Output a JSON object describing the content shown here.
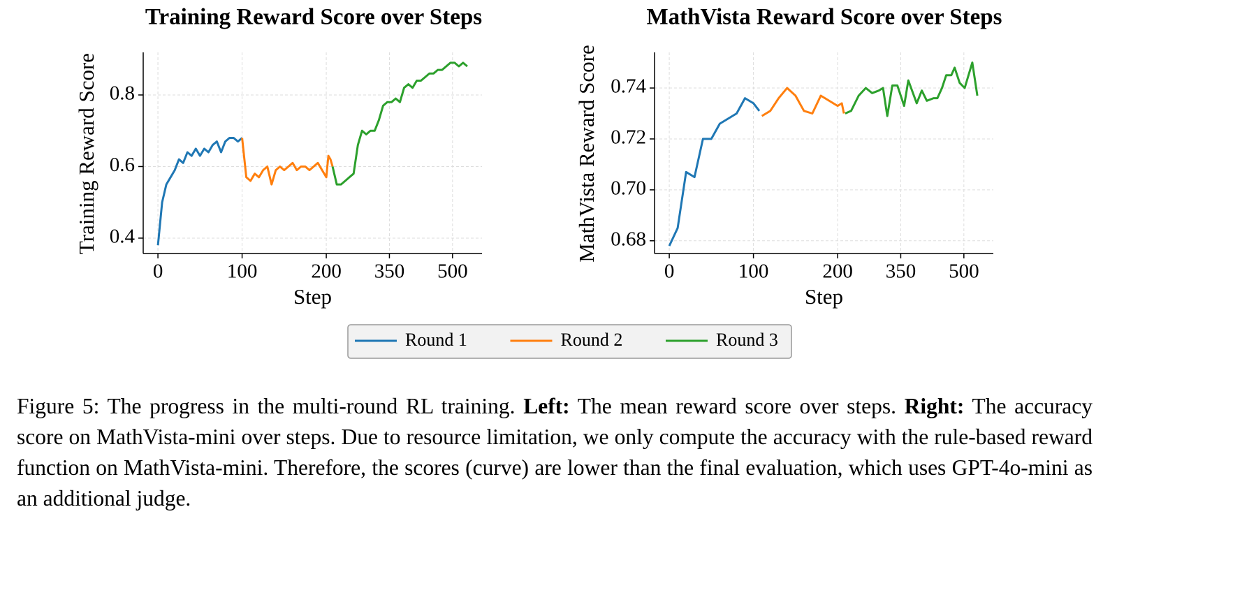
{
  "chart_data": [
    {
      "type": "line",
      "title": "Training Reward Score over Steps",
      "xlabel": "Step",
      "ylabel": "Training Reward Score",
      "xlim": [
        -17.5,
        570
      ],
      "xticks": [
        0,
        100,
        200,
        350,
        500
      ],
      "ylim": [
        0.357,
        0.919
      ],
      "yticks": [
        0.4,
        0.6,
        0.8
      ],
      "x_compress": {
        "after": 200,
        "factor": 0.5
      },
      "grid": true,
      "series": [
        {
          "name": "Round 1",
          "color": "#1f77b4",
          "x": [
            0,
            5,
            10,
            15,
            20,
            25,
            30,
            35,
            40,
            45,
            50,
            55,
            60,
            65,
            70,
            75,
            80,
            85,
            90,
            95,
            100
          ],
          "values": [
            0.38,
            0.5,
            0.55,
            0.57,
            0.59,
            0.62,
            0.61,
            0.64,
            0.63,
            0.65,
            0.63,
            0.65,
            0.64,
            0.66,
            0.67,
            0.64,
            0.67,
            0.68,
            0.68,
            0.67,
            0.68
          ]
        },
        {
          "name": "Round 2",
          "color": "#ff7f0e",
          "x": [
            100,
            105,
            110,
            115,
            120,
            125,
            130,
            135,
            140,
            145,
            150,
            155,
            160,
            165,
            170,
            175,
            180,
            185,
            190,
            195,
            200,
            205,
            210,
            215
          ],
          "values": [
            0.68,
            0.57,
            0.56,
            0.58,
            0.57,
            0.59,
            0.6,
            0.55,
            0.59,
            0.6,
            0.59,
            0.6,
            0.61,
            0.59,
            0.6,
            0.6,
            0.59,
            0.6,
            0.61,
            0.59,
            0.57,
            0.63,
            0.62,
            0.6
          ]
        },
        {
          "name": "Round 3",
          "color": "#2ca02c",
          "x": [
            215,
            225,
            235,
            245,
            255,
            265,
            275,
            285,
            295,
            305,
            315,
            325,
            335,
            345,
            355,
            365,
            375,
            385,
            395,
            405,
            415,
            425,
            435,
            445,
            455,
            465,
            475,
            485,
            495,
            505,
            515,
            525,
            535
          ],
          "values": [
            0.6,
            0.55,
            0.55,
            0.56,
            0.57,
            0.58,
            0.66,
            0.7,
            0.69,
            0.7,
            0.7,
            0.73,
            0.77,
            0.78,
            0.78,
            0.79,
            0.78,
            0.82,
            0.83,
            0.82,
            0.84,
            0.84,
            0.85,
            0.86,
            0.86,
            0.87,
            0.87,
            0.88,
            0.89,
            0.89,
            0.88,
            0.89,
            0.88
          ]
        }
      ]
    },
    {
      "type": "line",
      "title": "MathVista Reward Score over Steps",
      "xlabel": "Step",
      "ylabel": "MathVista Reward Score",
      "xlim": [
        -17.5,
        570
      ],
      "xticks": [
        0,
        100,
        200,
        350,
        500
      ],
      "ylim": [
        0.675,
        0.754
      ],
      "yticks": [
        0.68,
        {
          "value": 0.7,
          "label": "0.70"
        },
        0.72,
        0.74
      ],
      "x_compress": {
        "after": 200,
        "factor": 0.5
      },
      "grid": true,
      "series": [
        {
          "color": "#1f77b4",
          "x": [
            0,
            10,
            20,
            30,
            40,
            50,
            60,
            80,
            90,
            100,
            107
          ],
          "values": [
            0.678,
            0.685,
            0.707,
            0.705,
            0.72,
            0.72,
            0.726,
            0.73,
            0.736,
            0.734,
            0.731
          ]
        },
        {
          "color": "#ff7f0e",
          "x": [
            110,
            120,
            130,
            140,
            150,
            160,
            170,
            180,
            200,
            210,
            215
          ],
          "values": [
            0.729,
            0.731,
            0.736,
            0.74,
            0.737,
            0.731,
            0.73,
            0.737,
            0.733,
            0.734,
            0.73
          ]
        },
        {
          "color": "#2ca02c",
          "x": [
            218,
            232,
            250,
            267,
            282,
            298,
            308,
            318,
            330,
            342,
            358,
            368,
            388,
            400,
            412,
            428,
            437,
            448,
            458,
            470,
            478,
            490,
            502,
            520,
            532
          ],
          "values": [
            0.73,
            0.731,
            0.737,
            0.74,
            0.738,
            0.739,
            0.74,
            0.729,
            0.741,
            0.741,
            0.733,
            0.743,
            0.734,
            0.739,
            0.735,
            0.736,
            0.736,
            0.74,
            0.745,
            0.745,
            0.748,
            0.742,
            0.74,
            0.75,
            0.737
          ]
        }
      ]
    }
  ],
  "caption": {
    "label": "Figure 5:",
    "intro": "The progress in the multi-round RL training.",
    "left_label": "Left:",
    "left_text": "The mean reward score over steps.",
    "right_label": "Right:",
    "right_text": "The accuracy score on MathVista-mini over steps.  Due to resource limitation, we only compute the accuracy with the rule-based reward function on MathVista-mini. Therefore, the scores (curve) are lower than the final evaluation, which uses GPT-4o-mini as an additional judge."
  }
}
